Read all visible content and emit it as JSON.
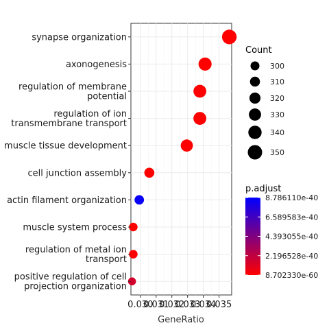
{
  "chart_data": {
    "type": "scatter",
    "title": "",
    "xlabel": "GeneRatio",
    "ylabel": "",
    "xlim": [
      0.0294,
      0.0358
    ],
    "xticks": [
      0.03,
      0.031,
      0.032,
      0.033,
      0.034,
      0.035
    ],
    "xtick_labels": [
      "0.030",
      "0.031",
      "0.032",
      "0.033",
      "0.034",
      "0.035"
    ],
    "grid": true,
    "categories": [
      "synapse organization",
      "axonogenesis",
      "regulation of membrane\npotential",
      "regulation of ion\ntransmembrane transport",
      "muscle tissue development",
      "cell junction assembly",
      "actin filament organization",
      "muscle system process",
      "regulation of metal ion\ntransport",
      "positive regulation of cell\nprojection organization"
    ],
    "points": [
      {
        "category": "synapse organization",
        "x": 0.03565,
        "count": 352,
        "p_adjust": 2e-54
      },
      {
        "category": "axonogenesis",
        "x": 0.03411,
        "count": 338,
        "p_adjust": 1e-58
      },
      {
        "category": "regulation of membrane\npotential",
        "x": 0.03378,
        "count": 336,
        "p_adjust": 1e-58
      },
      {
        "category": "regulation of ion\ntransmembrane transport",
        "x": 0.03378,
        "count": 336,
        "p_adjust": 1e-59
      },
      {
        "category": "muscle tissue development",
        "x": 0.03295,
        "count": 330,
        "p_adjust": 1e-56
      },
      {
        "category": "cell junction assembly",
        "x": 0.03057,
        "count": 310,
        "p_adjust": 1e-52
      },
      {
        "category": "actin filament organization",
        "x": 0.02993,
        "count": 305,
        "p_adjust": 8.5e-40
      },
      {
        "category": "muscle system process",
        "x": 0.02955,
        "count": 297,
        "p_adjust": 2e-45
      },
      {
        "category": "regulation of metal ion\ntransport",
        "x": 0.02955,
        "count": 297,
        "p_adjust": 1e-47
      },
      {
        "category": "positive regulation of cell\nprojection organization",
        "x": 0.02947,
        "count": 291,
        "p_adjust": 1.5e-40
      }
    ],
    "legend": {
      "size_title": "Count",
      "size_entries": [
        300,
        310,
        320,
        330,
        340,
        350
      ],
      "color_title": "p.adjust",
      "color_labels": [
        "8.786110e-40",
        "6.589583e-40",
        "4.393055e-40",
        "2.196528e-40",
        "8.702330e-60"
      ],
      "color_high": "#0000ff",
      "color_low": "#ff0000",
      "placement": "right"
    }
  }
}
